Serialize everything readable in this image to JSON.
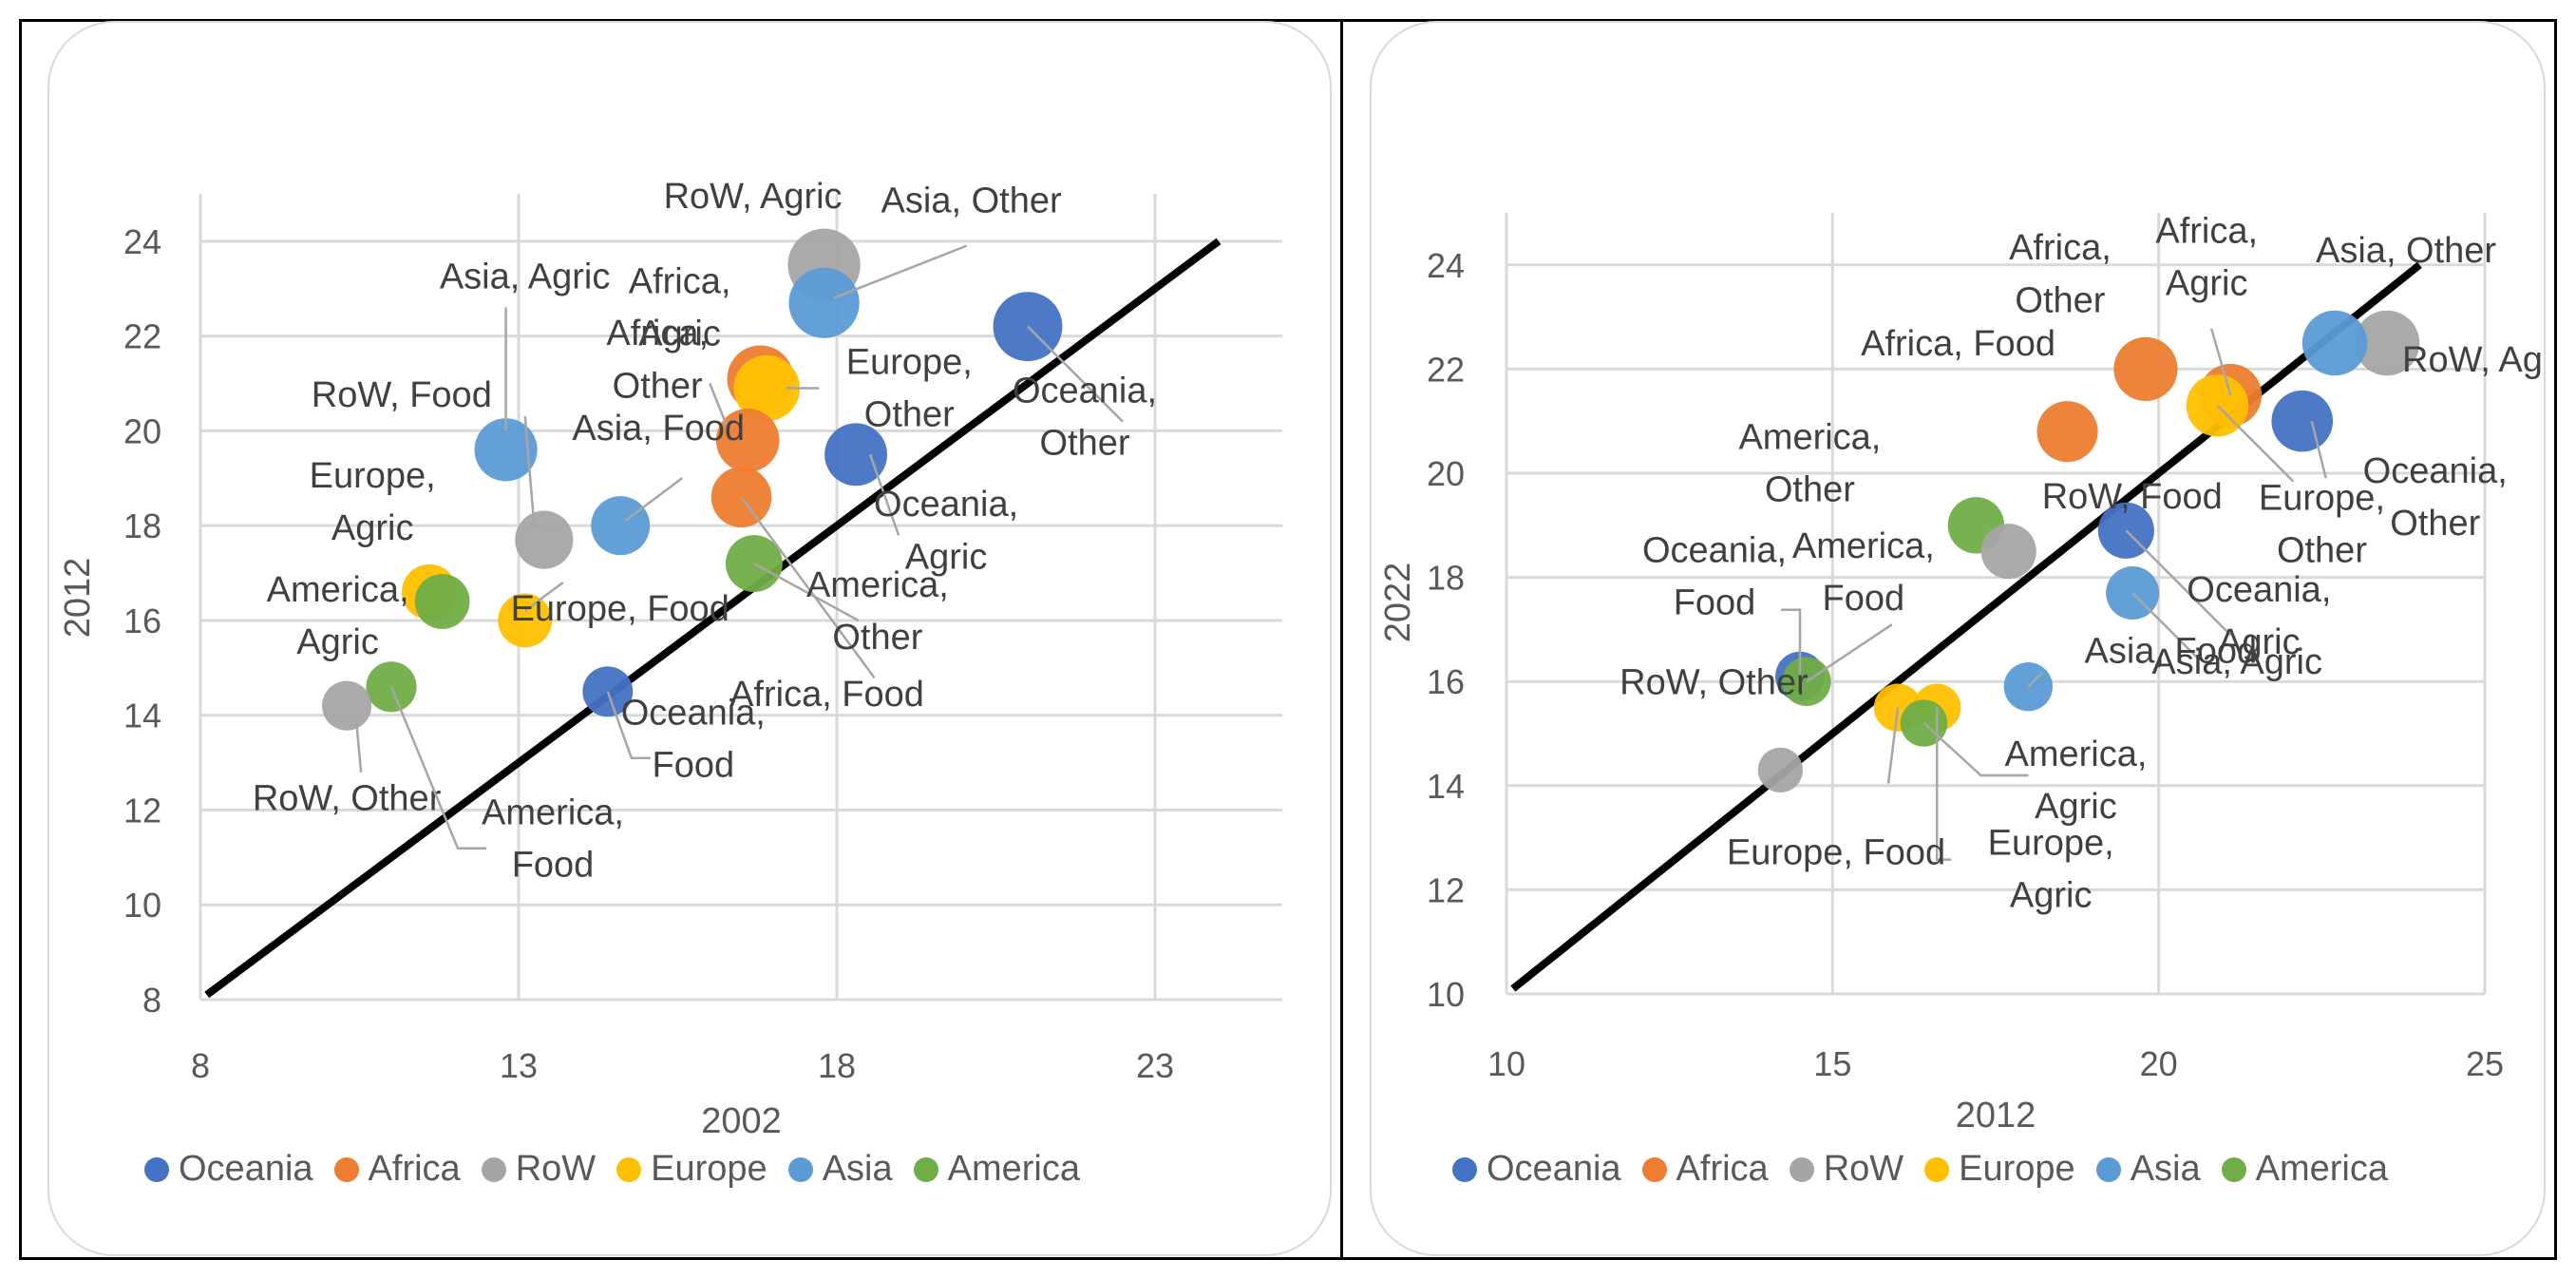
{
  "colors": {
    "Oceania": "#4472c4",
    "Africa": "#ed7d31",
    "RoW": "#a5a5a5",
    "Europe": "#ffc000",
    "Asia": "#5b9bd5",
    "America": "#70ad47",
    "grid": "#d9d9d9",
    "tick_text": "#595959",
    "diagonal": "#000000"
  },
  "chart_data": [
    {
      "type": "scatter",
      "title": "",
      "xlabel": "2002",
      "ylabel": "2012",
      "xlim": [
        8,
        25
      ],
      "ylim": [
        8,
        25
      ],
      "xticks": [
        8,
        13,
        18,
        23
      ],
      "yticks": [
        8,
        10,
        12,
        14,
        16,
        18,
        20,
        22,
        24
      ],
      "grid": true,
      "reference_line": "45-degree diagonal",
      "legend": [
        "Oceania",
        "Africa",
        "RoW",
        "Europe",
        "Asia",
        "America"
      ],
      "legend_position": "bottom",
      "points": [
        {
          "region": "Oceania",
          "x": 21.0,
          "y": 22.2,
          "label": "Oceania, Other"
        },
        {
          "region": "Oceania",
          "x": 18.3,
          "y": 19.5,
          "label": "Oceania, Agric"
        },
        {
          "region": "Oceania",
          "x": 14.4,
          "y": 14.5,
          "label": "Oceania, Food"
        },
        {
          "region": "Africa",
          "x": 16.8,
          "y": 21.1,
          "label": "Africa, Agric"
        },
        {
          "region": "Africa",
          "x": 16.6,
          "y": 19.8,
          "label": "Africa, Other"
        },
        {
          "region": "Africa",
          "x": 16.5,
          "y": 18.6,
          "label": "Africa, Food"
        },
        {
          "region": "RoW",
          "x": 17.8,
          "y": 23.5,
          "label": "RoW, Agric"
        },
        {
          "region": "RoW",
          "x": 13.4,
          "y": 17.7,
          "label": "RoW, Food"
        },
        {
          "region": "RoW",
          "x": 10.3,
          "y": 14.2,
          "label": "RoW, Other"
        },
        {
          "region": "Europe",
          "x": 16.9,
          "y": 20.9,
          "label": "Europe, Other"
        },
        {
          "region": "Europe",
          "x": 11.6,
          "y": 16.6,
          "label": "Europe, Agric"
        },
        {
          "region": "Europe",
          "x": 13.1,
          "y": 16.0,
          "label": "Europe, Food"
        },
        {
          "region": "Asia",
          "x": 17.8,
          "y": 22.7,
          "label": "Asia, Other"
        },
        {
          "region": "Asia",
          "x": 12.8,
          "y": 19.6,
          "label": "Asia, Agric"
        },
        {
          "region": "Asia",
          "x": 14.6,
          "y": 18.0,
          "label": "Asia, Food"
        },
        {
          "region": "America",
          "x": 16.7,
          "y": 17.2,
          "label": "America, Other"
        },
        {
          "region": "America",
          "x": 11.8,
          "y": 16.4,
          "label": "America, Agric"
        },
        {
          "region": "America",
          "x": 11.0,
          "y": 14.6,
          "label": "America, Food"
        }
      ]
    },
    {
      "type": "scatter",
      "title": "",
      "xlabel": "2012",
      "ylabel": "2022",
      "xlim": [
        10,
        25
      ],
      "ylim": [
        10,
        25
      ],
      "xticks": [
        10,
        15,
        20,
        25
      ],
      "yticks": [
        10,
        12,
        14,
        16,
        18,
        20,
        22,
        24
      ],
      "grid": true,
      "reference_line": "45-degree diagonal",
      "legend": [
        "Oceania",
        "Africa",
        "RoW",
        "Europe",
        "Asia",
        "America"
      ],
      "legend_position": "bottom",
      "points": [
        {
          "region": "Oceania",
          "x": 22.2,
          "y": 21.0,
          "label": "Oceania, Other"
        },
        {
          "region": "Oceania",
          "x": 19.5,
          "y": 18.9,
          "label": "Oceania, Agric"
        },
        {
          "region": "Oceania",
          "x": 14.5,
          "y": 16.1,
          "label": "Oceania, Food"
        },
        {
          "region": "Africa",
          "x": 21.1,
          "y": 21.5,
          "label": "Africa, Agric"
        },
        {
          "region": "Africa",
          "x": 19.8,
          "y": 22.0,
          "label": "Africa, Other"
        },
        {
          "region": "Africa",
          "x": 18.6,
          "y": 20.8,
          "label": "Africa, Food"
        },
        {
          "region": "RoW",
          "x": 23.5,
          "y": 22.5,
          "label": "RoW, Agric"
        },
        {
          "region": "RoW",
          "x": 17.7,
          "y": 18.5,
          "label": "RoW, Food"
        },
        {
          "region": "RoW",
          "x": 14.2,
          "y": 14.3,
          "label": "RoW, Other"
        },
        {
          "region": "Europe",
          "x": 20.9,
          "y": 21.3,
          "label": "Europe, Other"
        },
        {
          "region": "Europe",
          "x": 16.6,
          "y": 15.5,
          "label": "Europe, Agric"
        },
        {
          "region": "Europe",
          "x": 16.0,
          "y": 15.5,
          "label": "Europe, Food"
        },
        {
          "region": "Asia",
          "x": 22.7,
          "y": 22.5,
          "label": "Asia, Other"
        },
        {
          "region": "Asia",
          "x": 19.6,
          "y": 17.7,
          "label": "Asia, Agric"
        },
        {
          "region": "Asia",
          "x": 18.0,
          "y": 15.9,
          "label": "Asia, Food"
        },
        {
          "region": "America",
          "x": 17.2,
          "y": 19.0,
          "label": "America, Other"
        },
        {
          "region": "America",
          "x": 16.4,
          "y": 15.2,
          "label": "America, Agric"
        },
        {
          "region": "America",
          "x": 14.6,
          "y": 16.0,
          "label": "America, Food"
        }
      ]
    }
  ]
}
